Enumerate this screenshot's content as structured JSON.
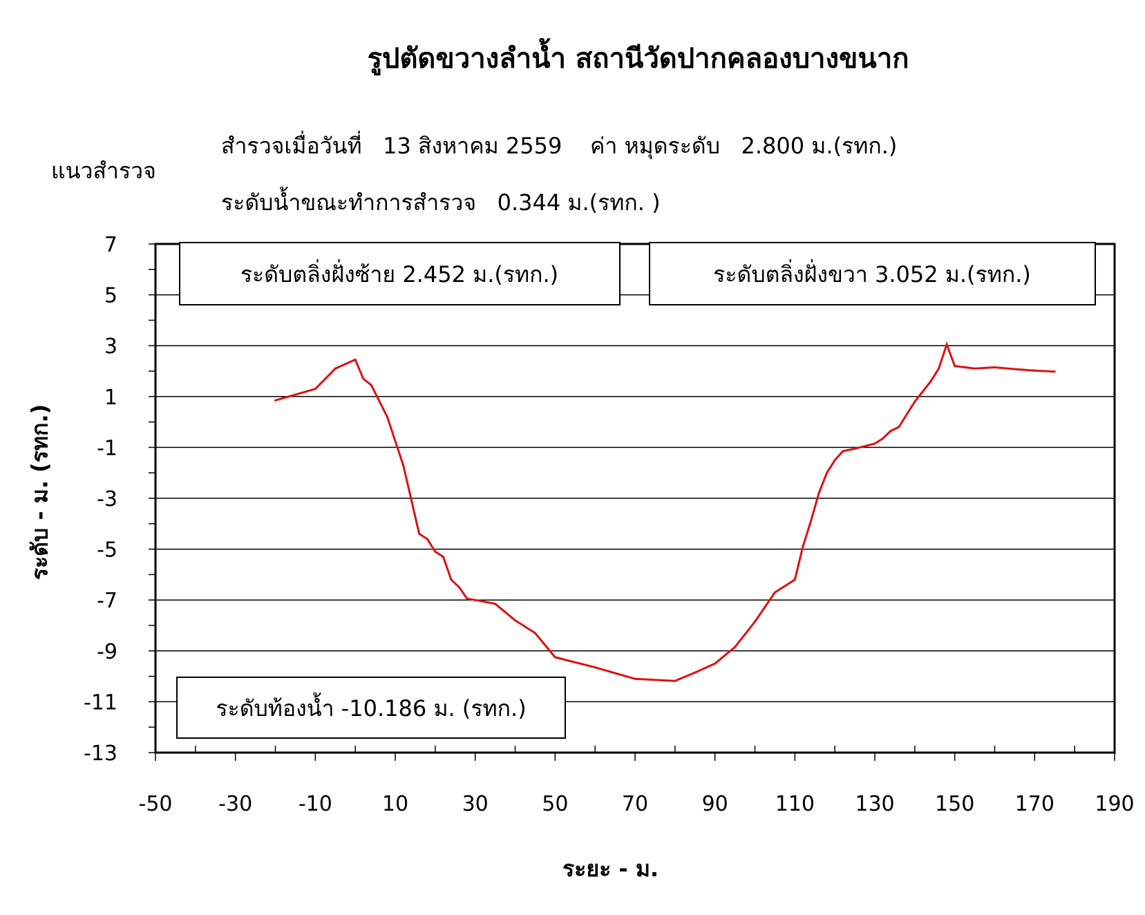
{
  "header": {
    "title": "รูปตัดขวางลำน้ำ  สถานีวัดปากคลองบางขนาก",
    "survey_line_label": "แนวสำรวจ",
    "survey_date_label": "สำรวจเมื่อวันที่",
    "survey_date": "13  สิงหาคม  2559",
    "benchmark_label": "ค่า หมุดระดับ",
    "benchmark_value": "2.800 ม.(รทก.)",
    "water_level_label": "ระดับน้ำขณะทำการสำรวจ",
    "water_level_value": "0.344  ม.(รทก. )"
  },
  "boxes": {
    "left_bank": "ระดับตลิ่งฝั่งซ้าย  2.452   ม.(รทก.)",
    "right_bank": "ระดับตลิ่งฝั่งขวา  3.052   ม.(รทก.)",
    "bed_level": "ระดับท้องน้ำ     -10.186 ม. (รทก.)"
  },
  "chart_data": {
    "type": "line",
    "title": "รูปตัดขวางลำน้ำ  สถานีวัดปากคลองบางขนาก",
    "xlabel": "ระยะ - ม.",
    "ylabel": "ระดับ - ม. (รทก.)",
    "xlim": [
      -50,
      190
    ],
    "ylim": [
      -13,
      7
    ],
    "x_ticks": [
      -50,
      -30,
      -10,
      10,
      30,
      50,
      70,
      90,
      110,
      130,
      150,
      170,
      190
    ],
    "y_ticks": [
      7,
      5,
      3,
      1,
      -1,
      -3,
      -5,
      -7,
      -9,
      -11,
      -13
    ],
    "grid": true,
    "color": "#dd1111",
    "series": [
      {
        "x": [
          -20,
          -10,
          -5,
          0,
          2,
          4,
          8,
          12,
          16,
          18,
          20,
          22,
          24,
          26,
          28,
          30,
          35,
          40,
          45,
          50,
          60,
          70,
          80,
          85,
          90,
          95,
          100,
          105,
          110,
          112,
          114,
          116,
          118,
          120,
          122,
          125,
          130,
          132,
          134,
          136,
          138,
          140,
          142,
          144,
          146,
          148,
          150,
          155,
          160,
          165,
          170,
          175
        ],
        "y": [
          0.85,
          1.3,
          2.1,
          2.45,
          1.7,
          1.45,
          0.2,
          -1.7,
          -4.4,
          -4.6,
          -5.1,
          -5.3,
          -6.2,
          -6.5,
          -6.95,
          -7.0,
          -7.15,
          -7.8,
          -8.3,
          -9.25,
          -9.65,
          -10.1,
          -10.186,
          -9.85,
          -9.5,
          -8.85,
          -7.85,
          -6.7,
          -6.2,
          -4.9,
          -3.9,
          -2.8,
          -2.0,
          -1.5,
          -1.15,
          -1.05,
          -0.85,
          -0.65,
          -0.35,
          -0.2,
          0.3,
          0.8,
          1.2,
          1.6,
          2.1,
          3.052,
          2.2,
          2.1,
          2.15,
          2.08,
          2.02,
          1.98
        ]
      }
    ]
  }
}
